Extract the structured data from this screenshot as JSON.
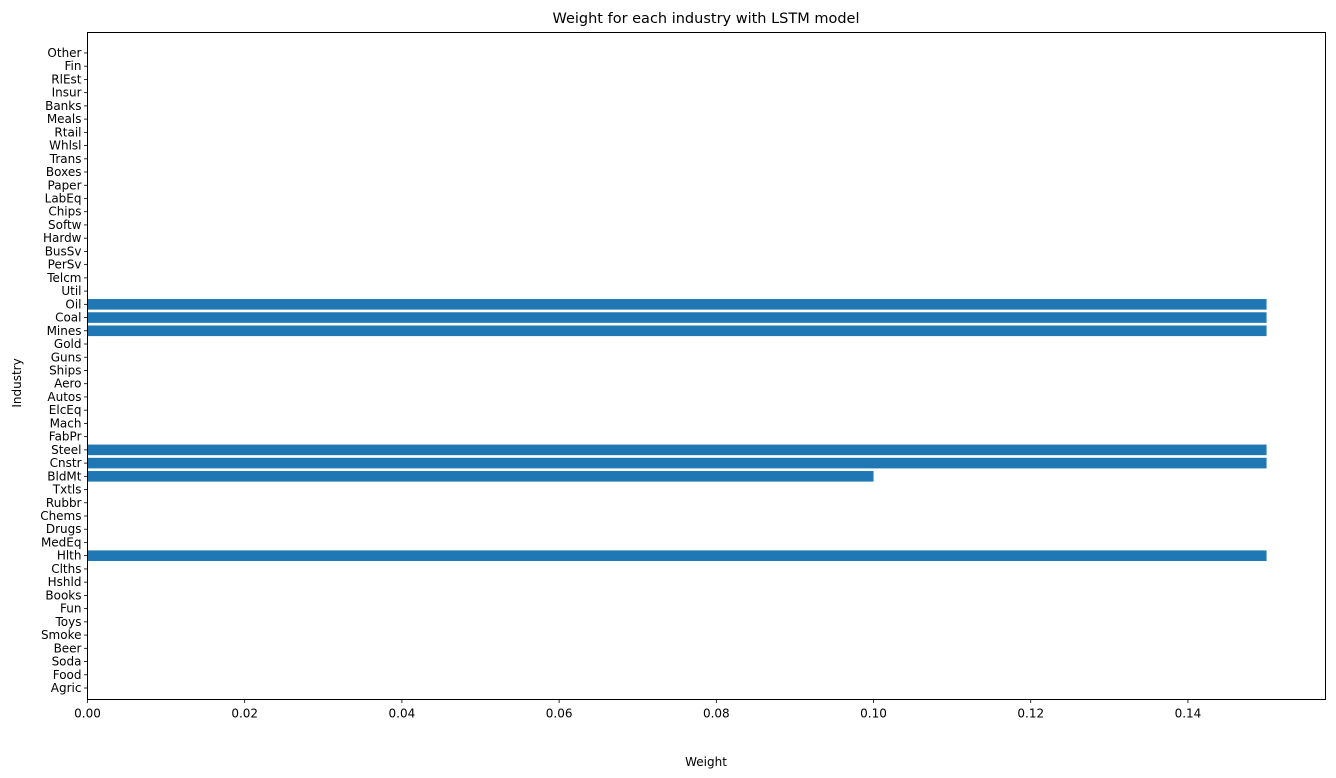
{
  "chart_data": {
    "type": "bar",
    "orientation": "horizontal",
    "title": "Weight for each industry with LSTM model",
    "xlabel": "Weight",
    "ylabel": "Industry",
    "xlim": [
      0,
      0.1575
    ],
    "xticks": [
      "0.00",
      "0.02",
      "0.04",
      "0.06",
      "0.08",
      "0.10",
      "0.12",
      "0.14"
    ],
    "bar_color": "#1f77b4",
    "grid": false,
    "legend": "none",
    "categories": [
      "Agric",
      "Food",
      "Soda",
      "Beer",
      "Smoke",
      "Toys",
      "Fun",
      "Books",
      "Hshld",
      "Clths",
      "Hlth",
      "MedEq",
      "Drugs",
      "Chems",
      "Rubbr",
      "Txtls",
      "BldMt",
      "Cnstr",
      "Steel",
      "FabPr",
      "Mach",
      "ElcEq",
      "Autos",
      "Aero",
      "Ships",
      "Guns",
      "Gold",
      "Mines",
      "Coal",
      "Oil",
      "Util",
      "Telcm",
      "PerSv",
      "BusSv",
      "Hardw",
      "Softw",
      "Chips",
      "LabEq",
      "Paper",
      "Boxes",
      "Trans",
      "Whlsl",
      "Rtail",
      "Meals",
      "Banks",
      "Insur",
      "RlEst",
      "Fin",
      "Other"
    ],
    "values": [
      0,
      0,
      0,
      0,
      0,
      0,
      0,
      0,
      0,
      0,
      0.15,
      0,
      0,
      0,
      0,
      0,
      0.1,
      0.15,
      0.15,
      0,
      0,
      0,
      0,
      0,
      0,
      0,
      0,
      0.15,
      0.15,
      0.15,
      0,
      0,
      0,
      0,
      0,
      0,
      0,
      0,
      0,
      0,
      0,
      0,
      0,
      0,
      0,
      0,
      0,
      0,
      0
    ]
  }
}
